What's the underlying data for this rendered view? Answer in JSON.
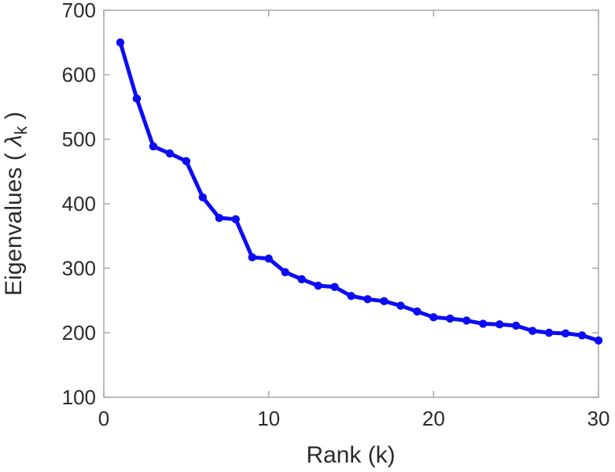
{
  "chart_data": {
    "type": "line",
    "title": "",
    "xlabel": "Rank (k)",
    "ylabel": "Eigenvalues ( λ_k )",
    "ylabel_parts": {
      "prefix": "Eigenvalues ( ",
      "lambda": "λ",
      "sub": "k",
      "suffix": " )"
    },
    "x": [
      1,
      2,
      3,
      4,
      5,
      6,
      7,
      8,
      9,
      10,
      11,
      12,
      13,
      14,
      15,
      16,
      17,
      18,
      19,
      20,
      21,
      22,
      23,
      24,
      25,
      26,
      27,
      28,
      29,
      30
    ],
    "values": [
      650,
      563,
      489,
      478,
      466,
      410,
      378,
      376,
      317,
      315,
      294,
      283,
      273,
      271,
      257,
      252,
      249,
      242,
      233,
      224,
      222,
      219,
      214,
      213,
      211,
      203,
      200,
      199,
      196,
      188
    ],
    "xlim": [
      0,
      30
    ],
    "ylim": [
      100,
      700
    ],
    "xticks": [
      0,
      10,
      20,
      30
    ],
    "yticks": [
      100,
      200,
      300,
      400,
      500,
      600,
      700
    ],
    "grid": "off",
    "legend": "none",
    "line_color": "#0d0df2",
    "marker": "filled-circle",
    "axis_color": "#a8a8a8",
    "text_color": "#2b2b2b"
  }
}
